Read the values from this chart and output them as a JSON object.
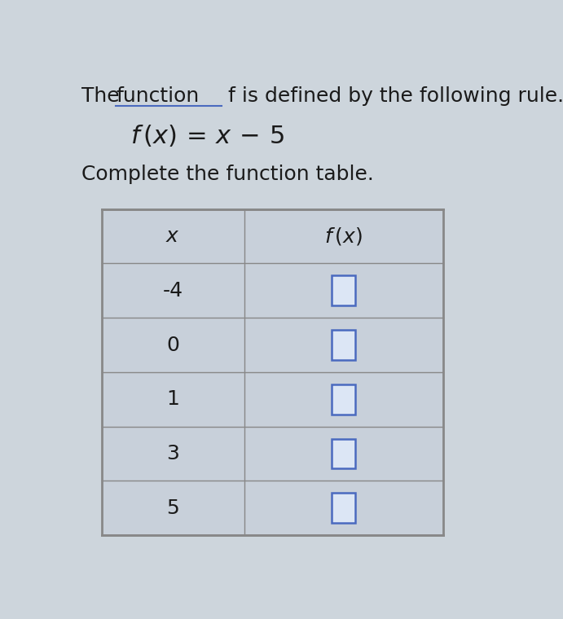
{
  "title_part1": "The ",
  "title_function": "function",
  "title_part2": " f is defined by the following rule.",
  "subtitle": "Complete the function table.",
  "bg_color": "#cdd5dc",
  "table_bg": "#c8d0da",
  "table_border": "#888888",
  "cell_border": "#888888",
  "title_color": "#1a1a1a",
  "function_underline_color": "#4a6abf",
  "box_color": "#4a6abf",
  "box_fill": "#dce6f5",
  "x_values": [
    "-4",
    "0",
    "1",
    "3",
    "5"
  ],
  "font_size_title": 18,
  "font_size_formula": 22,
  "font_size_subtitle": 18,
  "font_size_table": 18
}
